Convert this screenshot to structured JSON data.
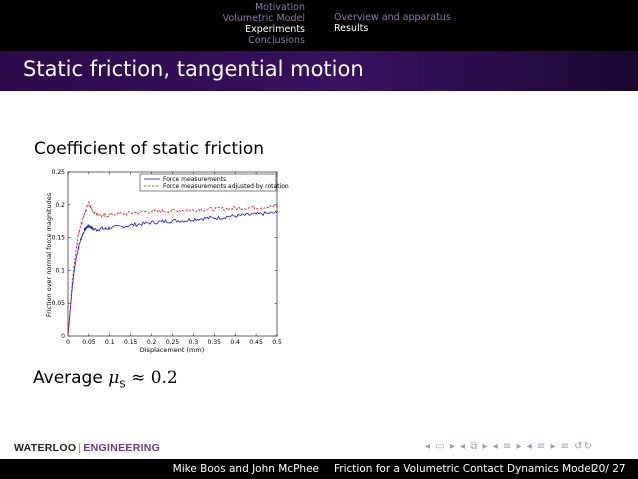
{
  "header": {
    "sections": [
      "Motivation",
      "Volumetric Model",
      "Experiments",
      "Conclusions"
    ],
    "active_section_index": 2,
    "subsections": [
      "Overview and apparatus",
      "Results"
    ],
    "active_subsection_index": 1
  },
  "frame": {
    "title": "Static friction, tangential motion",
    "heading": "Coefficient of static friction",
    "average_label": "Average",
    "average_symbol": "μ",
    "average_subscript": "S",
    "average_relation": "≈ 0.2"
  },
  "logo": {
    "part1": "WATERLOO",
    "separator": "|",
    "part2": "ENGINEERING"
  },
  "navigation_symbols": "◂ ▭ ▸ ◂ ⧉ ▸ ◂ ≡ ▸ ◂ ≡ ▸ ≡ ↺↻",
  "footer": {
    "authors": "Mike Boos and John McPhee",
    "talk_title": "Friction for a Volumetric Contact Dynamics Model",
    "page": "20/ 27"
  },
  "colors": {
    "nav_bar": "#000000",
    "title_bar": "#33105a",
    "series_blue": "#1a1ad8",
    "series_red": "#e01818"
  },
  "chart_data": {
    "type": "line",
    "xlabel": "Displacement (mm)",
    "ylabel": "Friction over normal force magnitudes",
    "xlim": [
      0,
      0.5
    ],
    "ylim": [
      0,
      0.25
    ],
    "xticks": [
      0,
      0.05,
      0.1,
      0.15,
      0.2,
      0.25,
      0.3,
      0.35,
      0.4,
      0.45,
      0.5
    ],
    "xtick_labels": [
      "0",
      "0.05",
      "0.1",
      "0.15",
      "0.2",
      "0.25",
      "0.3",
      "0.35",
      "0.4",
      "0.45",
      "0.5"
    ],
    "yticks": [
      0,
      0.05,
      0.1,
      0.15,
      0.2,
      0.25
    ],
    "ytick_labels": [
      "0",
      "0.05",
      "0.1",
      "0.15",
      "0.2",
      "0.25"
    ],
    "legend_position": "top-right",
    "series": [
      {
        "name": "Force measurements",
        "style": "solid",
        "color": "#1a1ad8",
        "x": [
          0,
          0.005,
          0.01,
          0.015,
          0.02,
          0.025,
          0.03,
          0.035,
          0.04,
          0.045,
          0.05,
          0.055,
          0.06,
          0.07,
          0.08,
          0.09,
          0.1,
          0.12,
          0.14,
          0.16,
          0.18,
          0.2,
          0.22,
          0.24,
          0.26,
          0.28,
          0.3,
          0.32,
          0.34,
          0.36,
          0.38,
          0.4,
          0.42,
          0.44,
          0.46,
          0.48,
          0.5
        ],
        "y": [
          0,
          0.035,
          0.072,
          0.1,
          0.12,
          0.135,
          0.146,
          0.155,
          0.162,
          0.166,
          0.168,
          0.166,
          0.163,
          0.162,
          0.164,
          0.163,
          0.165,
          0.166,
          0.168,
          0.17,
          0.171,
          0.173,
          0.174,
          0.175,
          0.176,
          0.176,
          0.178,
          0.179,
          0.18,
          0.18,
          0.182,
          0.183,
          0.184,
          0.185,
          0.186,
          0.187,
          0.188
        ]
      },
      {
        "name": "Force measurements adjusted by rotation",
        "style": "dashed",
        "color": "#e01818",
        "x": [
          0,
          0.005,
          0.01,
          0.015,
          0.02,
          0.025,
          0.03,
          0.035,
          0.04,
          0.045,
          0.05,
          0.055,
          0.06,
          0.07,
          0.08,
          0.09,
          0.1,
          0.12,
          0.14,
          0.16,
          0.18,
          0.2,
          0.22,
          0.24,
          0.26,
          0.28,
          0.3,
          0.32,
          0.34,
          0.36,
          0.38,
          0.4,
          0.42,
          0.44,
          0.46,
          0.48,
          0.5
        ],
        "y": [
          0,
          0.04,
          0.08,
          0.11,
          0.135,
          0.155,
          0.168,
          0.178,
          0.186,
          0.196,
          0.205,
          0.196,
          0.19,
          0.186,
          0.183,
          0.184,
          0.185,
          0.186,
          0.187,
          0.188,
          0.189,
          0.19,
          0.19,
          0.191,
          0.191,
          0.192,
          0.192,
          0.193,
          0.193,
          0.194,
          0.194,
          0.195,
          0.195,
          0.196,
          0.196,
          0.197,
          0.197
        ]
      }
    ]
  }
}
